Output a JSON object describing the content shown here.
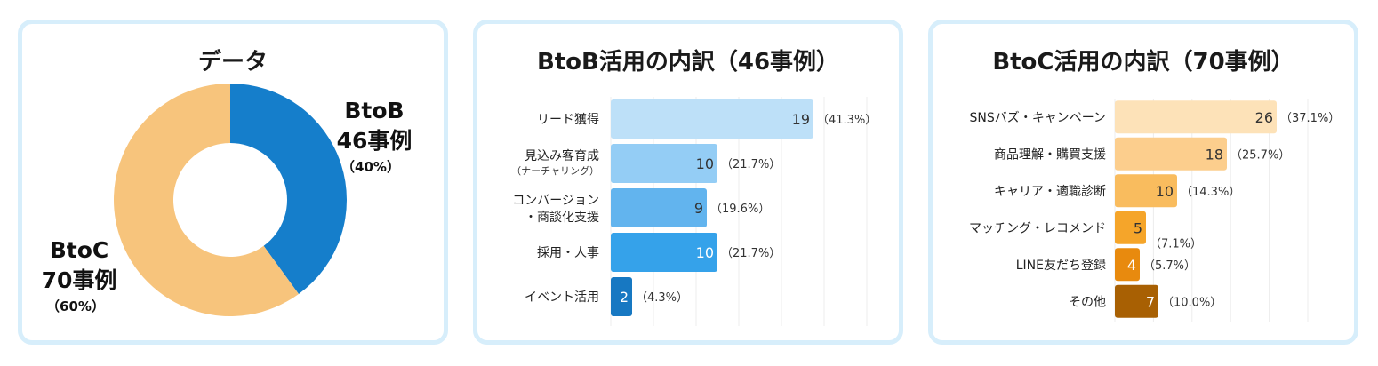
{
  "chart_data": [
    {
      "type": "pie",
      "title": "データ",
      "slices": [
        {
          "name": "BtoB",
          "count_label": "46事例",
          "percent_label": "（40%）",
          "value": 40,
          "color": "#157ecb"
        },
        {
          "name": "BtoC",
          "count_label": "70事例",
          "percent_label": "（60%）",
          "value": 60,
          "color": "#f7c47c"
        }
      ]
    },
    {
      "type": "bar",
      "orientation": "horizontal",
      "title": "BtoB活用の内訳（46事例）",
      "xlim": [
        0,
        24
      ],
      "grid": true,
      "categories": [
        {
          "lines": [
            "リード獲得"
          ],
          "sub": ""
        },
        {
          "lines": [
            "見込み客育成"
          ],
          "sub": "（ナーチャリング）"
        },
        {
          "lines": [
            "コンバージョン",
            "・商談化支援"
          ],
          "sub": ""
        },
        {
          "lines": [
            "採用・人事"
          ],
          "sub": ""
        },
        {
          "lines": [
            "イベント活用"
          ],
          "sub": ""
        }
      ],
      "values": [
        19,
        10,
        9,
        10,
        2
      ],
      "percents": [
        "（41.3%）",
        "（21.7%）",
        "（19.6%）",
        "（21.7%）",
        "（4.3%）"
      ],
      "colors": [
        "#bde0f8",
        "#94cdf5",
        "#62b4ee",
        "#35a2ea",
        "#1778c2"
      ],
      "value_text_colors": [
        "#333333",
        "#333333",
        "#333333",
        "#ffffff",
        "#ffffff"
      ]
    },
    {
      "type": "bar",
      "orientation": "horizontal",
      "title": "BtoC活用の内訳（70事例）",
      "xlim": [
        0,
        31
      ],
      "grid": true,
      "categories": [
        {
          "lines": [
            "SNSバズ・キャンペーン"
          ],
          "sub": ""
        },
        {
          "lines": [
            "商品理解・購買支援"
          ],
          "sub": ""
        },
        {
          "lines": [
            "キャリア・適職診断"
          ],
          "sub": ""
        },
        {
          "lines": [
            "マッチング・レコメンド"
          ],
          "sub": ""
        },
        {
          "lines": [
            "LINE友だち登録"
          ],
          "sub": ""
        },
        {
          "lines": [
            "その他"
          ],
          "sub": ""
        }
      ],
      "values": [
        26,
        18,
        10,
        5,
        4,
        7
      ],
      "percents": [
        "（37.1%）",
        "（25.7%）",
        "（14.3%）",
        "（7.1%）",
        "（5.7%）",
        "（10.0%）"
      ],
      "colors": [
        "#fde2b8",
        "#fcce8d",
        "#f9bc5e",
        "#f5a52a",
        "#e88a0e",
        "#a86003"
      ],
      "value_text_colors": [
        "#333333",
        "#333333",
        "#333333",
        "#333333",
        "#ffffff",
        "#ffffff"
      ]
    }
  ]
}
